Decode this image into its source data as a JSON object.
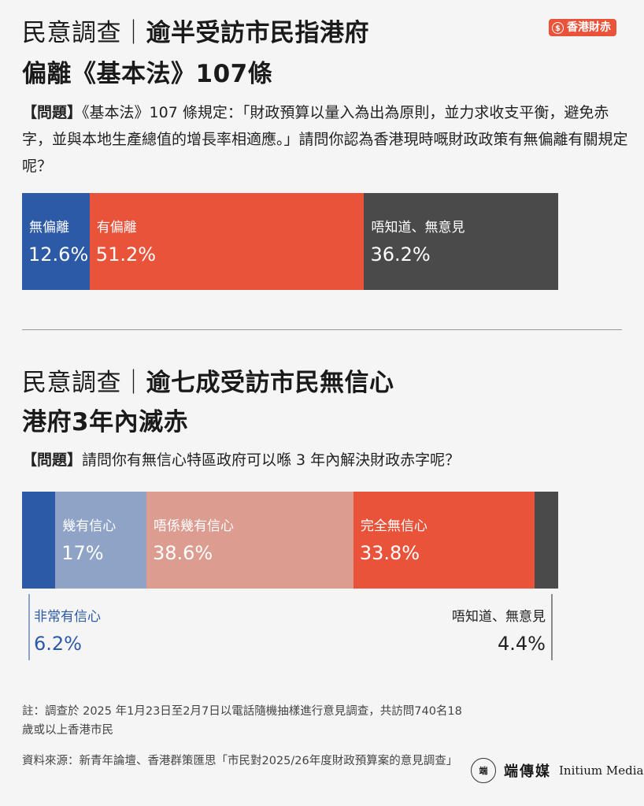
{
  "brand": {
    "badge_icon": "$",
    "badge_label": "香港財赤",
    "badge_color": "#e8533a"
  },
  "section1": {
    "title_prefix": "民意調查｜",
    "title_main": "逾半受訪市民指港府",
    "title_line2": "偏離《基本法》107條",
    "question_tag": "【問題】",
    "question_text": "《基本法》107 條規定：「財政預算以量入為出為原則，並力求收支平衡，避免赤字，並與本地生產總值的增長率相適應。」請問你認為香港現時嘅財政政策有無偏離有關規定呢？"
  },
  "section2": {
    "title_prefix": "民意調查｜",
    "title_main": "逾七成受訪市民無信心",
    "title_line2": "港府3年內滅赤",
    "question_tag": "【問題】",
    "question_text": "請問你有無信心特區政府可以喺 3 年內解決財政赤字呢？"
  },
  "chart_data": [
    {
      "type": "bar",
      "stacked": "100%",
      "orientation": "horizontal",
      "segments": [
        {
          "label": "無偏離",
          "value": 12.6,
          "display": "12.6%",
          "color": "#2c5aa6",
          "text_color": "#ffffff"
        },
        {
          "label": "有偏離",
          "value": 51.2,
          "display": "51.2%",
          "color": "#e8533a",
          "text_color": "#ffffff"
        },
        {
          "label": "唔知道、無意見",
          "value": 36.2,
          "display": "36.2%",
          "color": "#4a4a4a",
          "text_color": "#ffffff"
        }
      ]
    },
    {
      "type": "bar",
      "stacked": "100%",
      "orientation": "horizontal",
      "segments": [
        {
          "label": "非常有信心",
          "value": 6.2,
          "display": "6.2%",
          "color": "#2c5aa6",
          "text_color": "#2c5aa6",
          "label_outside": "below-left"
        },
        {
          "label": "幾有信心",
          "value": 17,
          "display": "17%",
          "color": "#8ea3c6",
          "text_color": "#ffffff"
        },
        {
          "label": "唔係幾有信心",
          "value": 38.6,
          "display": "38.6%",
          "color": "#dc9c90",
          "text_color": "#ffffff"
        },
        {
          "label": "完全無信心",
          "value": 33.8,
          "display": "33.8%",
          "color": "#e8533a",
          "text_color": "#ffffff"
        },
        {
          "label": "唔知道、無意見",
          "value": 4.4,
          "display": "4.4%",
          "color": "#4a4a4a",
          "text_color": "#222222",
          "label_outside": "below-right"
        }
      ]
    }
  ],
  "notes": {
    "note": "註：調查於 2025 年1月23日至2月7日以電話隨機抽樣進行意見調查，共訪問740名18歲或以上香港市民",
    "source": "資料來源：新青年論壇、香港群策匯思「市民對2025/26年度財政預算案的意見調查」"
  },
  "logo": {
    "icon_text": "端",
    "name_zh": "端傳媒",
    "name_en": "Initium Media"
  }
}
